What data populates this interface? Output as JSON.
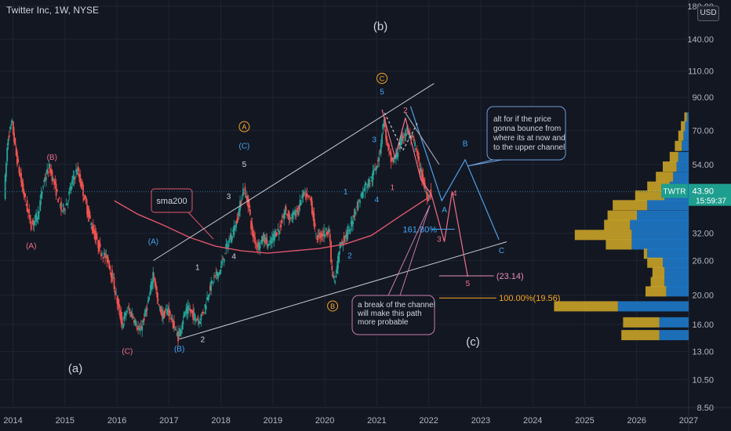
{
  "header": {
    "title": "Twitter Inc, 1W, NYSE",
    "currency": "USD"
  },
  "colors": {
    "background": "#131722",
    "candle_up": "#26a69a",
    "candle_down": "#ef5350",
    "sma": "#e0566b",
    "channel": "#c9ccd6",
    "wave_pink": "#ef6f8a",
    "wave_blue": "#42a5f5",
    "wave_orange": "#f5a623",
    "volume_blue": "#1e78c8",
    "volume_gold": "#c9a227",
    "note_border": "#6d9edb"
  },
  "chart_data": {
    "type": "candlestick",
    "symbol": "TWTR",
    "interval": "1W",
    "exchange": "NYSE",
    "y_scale": "log",
    "ylim": [
      8.5,
      180
    ],
    "y_ticks": [
      {
        "label": "180.00",
        "value": 180
      },
      {
        "label": "140.00",
        "value": 140
      },
      {
        "label": "110.00",
        "value": 110
      },
      {
        "label": "90.00",
        "value": 90
      },
      {
        "label": "70.00",
        "value": 70
      },
      {
        "label": "54.00",
        "value": 54
      },
      {
        "label": "32.00",
        "value": 32
      },
      {
        "label": "26.00",
        "value": 26
      },
      {
        "label": "20.00",
        "value": 20
      },
      {
        "label": "16.00",
        "value": 16
      },
      {
        "label": "13.00",
        "value": 13
      },
      {
        "label": "10.50",
        "value": 10.5
      },
      {
        "label": "8.50",
        "value": 8.5
      }
    ],
    "x_ticks": [
      {
        "label": "2014",
        "value": 2014.0
      },
      {
        "label": "2015",
        "value": 2015.0
      },
      {
        "label": "2016",
        "value": 2016.0
      },
      {
        "label": "2017",
        "value": 2017.0
      },
      {
        "label": "2018",
        "value": 2018.0
      },
      {
        "label": "2019",
        "value": 2019.0
      },
      {
        "label": "2020",
        "value": 2020.0
      },
      {
        "label": "2021",
        "value": 2021.0
      },
      {
        "label": "2022",
        "value": 2022.0
      },
      {
        "label": "2023",
        "value": 2023.0
      },
      {
        "label": "2024",
        "value": 2024.0
      },
      {
        "label": "2025",
        "value": 2025.0
      },
      {
        "label": "2026",
        "value": 2026.0
      },
      {
        "label": "2027",
        "value": 2027.0
      }
    ],
    "xlim": [
      2013.75,
      2027.0
    ],
    "last_price": {
      "label": "TWTR",
      "value": "43.90",
      "countdown": "15:59:37",
      "price": 43.9
    },
    "price_path": [
      [
        2013.85,
        43
      ],
      [
        2013.92,
        66
      ],
      [
        2014.0,
        74
      ],
      [
        2014.08,
        58
      ],
      [
        2014.2,
        45
      ],
      [
        2014.3,
        38
      ],
      [
        2014.37,
        34
      ],
      [
        2014.5,
        37
      ],
      [
        2014.62,
        48
      ],
      [
        2014.72,
        53
      ],
      [
        2014.85,
        44
      ],
      [
        2014.95,
        38
      ],
      [
        2015.05,
        40
      ],
      [
        2015.15,
        47
      ],
      [
        2015.25,
        52
      ],
      [
        2015.35,
        45
      ],
      [
        2015.45,
        38
      ],
      [
        2015.55,
        33
      ],
      [
        2015.7,
        28
      ],
      [
        2015.85,
        26
      ],
      [
        2015.95,
        22
      ],
      [
        2016.05,
        18
      ],
      [
        2016.12,
        16
      ],
      [
        2016.22,
        18
      ],
      [
        2016.33,
        17
      ],
      [
        2016.45,
        15
      ],
      [
        2016.55,
        17
      ],
      [
        2016.65,
        20
      ],
      [
        2016.72,
        24
      ],
      [
        2016.8,
        19
      ],
      [
        2016.9,
        17
      ],
      [
        2017.0,
        18
      ],
      [
        2017.1,
        16
      ],
      [
        2017.2,
        14.5
      ],
      [
        2017.3,
        17
      ],
      [
        2017.4,
        18
      ],
      [
        2017.5,
        17
      ],
      [
        2017.6,
        16.5
      ],
      [
        2017.7,
        18
      ],
      [
        2017.8,
        21
      ],
      [
        2017.9,
        23
      ],
      [
        2018.0,
        24
      ],
      [
        2018.1,
        28
      ],
      [
        2018.2,
        31
      ],
      [
        2018.3,
        34
      ],
      [
        2018.38,
        39
      ],
      [
        2018.45,
        45
      ],
      [
        2018.55,
        40
      ],
      [
        2018.62,
        32
      ],
      [
        2018.72,
        29
      ],
      [
        2018.85,
        31
      ],
      [
        2018.95,
        29
      ],
      [
        2019.05,
        32
      ],
      [
        2019.15,
        33
      ],
      [
        2019.25,
        38
      ],
      [
        2019.35,
        36
      ],
      [
        2019.5,
        38
      ],
      [
        2019.6,
        43
      ],
      [
        2019.75,
        41
      ],
      [
        2019.85,
        31
      ],
      [
        2020.0,
        32
      ],
      [
        2020.1,
        33
      ],
      [
        2020.15,
        24
      ],
      [
        2020.22,
        22
      ],
      [
        2020.3,
        29
      ],
      [
        2020.4,
        31
      ],
      [
        2020.5,
        33
      ],
      [
        2020.6,
        38
      ],
      [
        2020.7,
        42
      ],
      [
        2020.8,
        46
      ],
      [
        2020.9,
        48
      ],
      [
        2021.0,
        53
      ],
      [
        2021.08,
        60
      ],
      [
        2021.15,
        77
      ],
      [
        2021.22,
        62
      ],
      [
        2021.3,
        55
      ],
      [
        2021.38,
        57
      ],
      [
        2021.45,
        62
      ],
      [
        2021.52,
        67
      ],
      [
        2021.6,
        70
      ],
      [
        2021.68,
        66
      ],
      [
        2021.75,
        63
      ],
      [
        2021.82,
        55
      ],
      [
        2021.9,
        48
      ],
      [
        2022.0,
        42
      ],
      [
        2022.05,
        43.9
      ]
    ],
    "sma200": {
      "label": "sma200",
      "points": [
        [
          2015.95,
          41
        ],
        [
          2016.4,
          37
        ],
        [
          2016.9,
          34
        ],
        [
          2017.4,
          31
        ],
        [
          2017.9,
          29
        ],
        [
          2018.4,
          28
        ],
        [
          2018.9,
          27.5
        ],
        [
          2019.4,
          28
        ],
        [
          2019.9,
          28.5
        ],
        [
          2020.4,
          29.5
        ],
        [
          2020.9,
          31.5
        ],
        [
          2021.4,
          36
        ],
        [
          2021.9,
          41
        ],
        [
          2022.05,
          42.5
        ]
      ]
    },
    "channel_lines": [
      {
        "from": [
          2016.7,
          26
        ],
        "to": [
          2022.1,
          100
        ]
      },
      {
        "from": [
          2017.2,
          14.3
        ],
        "to": [
          2023.5,
          30
        ]
      }
    ],
    "volume_profile": [
      {
        "price": 77,
        "blue": 2,
        "gold": 3
      },
      {
        "price": 72,
        "blue": 4,
        "gold": 5
      },
      {
        "price": 67,
        "blue": 6,
        "gold": 6
      },
      {
        "price": 62,
        "blue": 8,
        "gold": 8
      },
      {
        "price": 57,
        "blue": 12,
        "gold": 10
      },
      {
        "price": 53,
        "blue": 14,
        "gold": 16
      },
      {
        "price": 49,
        "blue": 18,
        "gold": 20
      },
      {
        "price": 45.5,
        "blue": 22,
        "gold": 26
      },
      {
        "price": 42.5,
        "blue": 28,
        "gold": 34
      },
      {
        "price": 39.5,
        "blue": 48,
        "gold": 40
      },
      {
        "price": 36.5,
        "blue": 60,
        "gold": 34
      },
      {
        "price": 34,
        "blue": 68,
        "gold": 30
      },
      {
        "price": 31.5,
        "blue": 66,
        "gold": 66
      },
      {
        "price": 29.3,
        "blue": 66,
        "gold": 30
      },
      {
        "price": 27.3,
        "blue": 48,
        "gold": 4
      },
      {
        "price": 25.5,
        "blue": 30,
        "gold": 18
      },
      {
        "price": 23.7,
        "blue": 28,
        "gold": 14
      },
      {
        "price": 22,
        "blue": 28,
        "gold": 16
      },
      {
        "price": 20.5,
        "blue": 26,
        "gold": 24
      },
      {
        "price": 18.3,
        "blue": 82,
        "gold": 74
      },
      {
        "price": 16.2,
        "blue": 34,
        "gold": 42
      },
      {
        "price": 14.7,
        "blue": 34,
        "gold": 44
      }
    ],
    "wave_labels": [
      {
        "text": "(b)",
        "x": 2021.07,
        "y": 150,
        "color": "#d1d4dc",
        "size": 15
      },
      {
        "text": "(a)",
        "x": 2015.2,
        "y": 11.1,
        "color": "#d1d4dc",
        "size": 15
      },
      {
        "text": "(c)",
        "x": 2022.85,
        "y": 13.6,
        "color": "#d1d4dc",
        "size": 15
      },
      {
        "text": "(A)",
        "x": 2014.35,
        "y": 28.5,
        "color": "#ef6f8a"
      },
      {
        "text": "(B)",
        "x": 2014.75,
        "y": 56,
        "color": "#ef6f8a"
      },
      {
        "text": "(C)",
        "x": 2016.2,
        "y": 12.8,
        "color": "#ef6f8a"
      },
      {
        "text": "(A)",
        "x": 2016.7,
        "y": 29.5,
        "color": "#42a5f5"
      },
      {
        "text": "(B)",
        "x": 2017.2,
        "y": 13.0,
        "color": "#42a5f5"
      },
      {
        "text": "(C)",
        "x": 2018.45,
        "y": 61,
        "color": "#42a5f5"
      },
      {
        "text": "5",
        "x": 2018.45,
        "y": 53,
        "color": "#d1d4dc"
      },
      {
        "text": "1",
        "x": 2017.55,
        "y": 24.2,
        "color": "#d1d4dc"
      },
      {
        "text": "2",
        "x": 2017.65,
        "y": 14.0,
        "color": "#d1d4dc"
      },
      {
        "text": "3",
        "x": 2018.15,
        "y": 41.5,
        "color": "#d1d4dc"
      },
      {
        "text": "4",
        "x": 2018.25,
        "y": 26.3,
        "color": "#d1d4dc"
      },
      {
        "text": "1",
        "x": 2020.4,
        "y": 43,
        "color": "#42a5f5"
      },
      {
        "text": "2",
        "x": 2020.48,
        "y": 26.5,
        "color": "#42a5f5"
      },
      {
        "text": "3",
        "x": 2020.95,
        "y": 64,
        "color": "#42a5f5"
      },
      {
        "text": "4",
        "x": 2021.0,
        "y": 40.5,
        "color": "#42a5f5"
      },
      {
        "text": "5",
        "x": 2021.1,
        "y": 92,
        "color": "#42a5f5"
      },
      {
        "text": "1",
        "x": 2021.3,
        "y": 44.5,
        "color": "#ef6f8a"
      },
      {
        "text": "2",
        "x": 2021.55,
        "y": 80,
        "color": "#ef6f8a"
      },
      {
        "text": "3",
        "x": 2022.2,
        "y": 30.0,
        "color": "#ef6f8a"
      },
      {
        "text": "4",
        "x": 2022.5,
        "y": 42.5,
        "color": "#ef6f8a"
      },
      {
        "text": "5",
        "x": 2022.75,
        "y": 21.4,
        "color": "#ef6f8a"
      },
      {
        "text": "A",
        "x": 2022.3,
        "y": 37.5,
        "color": "#42a5f5"
      },
      {
        "text": "B",
        "x": 2022.7,
        "y": 62,
        "color": "#42a5f5"
      },
      {
        "text": "C",
        "x": 2023.4,
        "y": 27.5,
        "color": "#42a5f5"
      }
    ],
    "circled_labels": [
      {
        "text": "A",
        "x": 2018.45,
        "y": 72,
        "color": "#f5a623"
      },
      {
        "text": "B",
        "x": 2020.15,
        "y": 18.4,
        "color": "#f5a623"
      },
      {
        "text": "C",
        "x": 2021.1,
        "y": 104,
        "color": "#f5a623"
      }
    ],
    "fib_levels": [
      {
        "text": "161.80%",
        "x": 2021.5,
        "y": 33.0,
        "color": "#42a5f5"
      },
      {
        "text": "(23.14)",
        "x": 2023.3,
        "y": 23.14,
        "color": "#e48fb1"
      },
      {
        "text": "100.00%(19.56)",
        "x": 2023.35,
        "y": 19.56,
        "color": "#f5a623"
      }
    ],
    "notes": [
      {
        "text": [
          "alt for if the price",
          "gonna bounce from",
          "where its at now and",
          "to the upper channel"
        ]
      },
      {
        "text": [
          "a break of the channel",
          "will make this path",
          "more probable"
        ]
      }
    ]
  }
}
